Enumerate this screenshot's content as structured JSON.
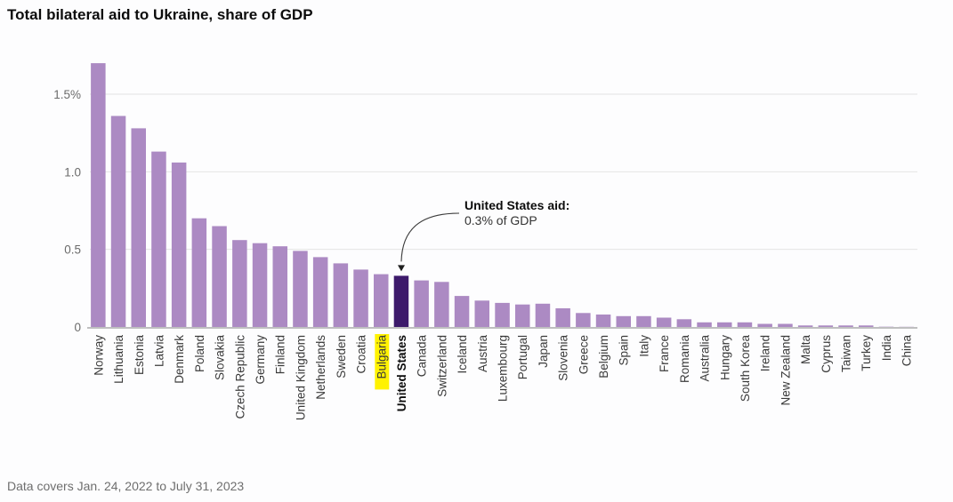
{
  "chart_data": {
    "type": "bar",
    "title": "Total bilateral aid to Ukraine, share of GDP",
    "xlabel": "",
    "ylabel": "",
    "ylim": [
      0,
      1.7
    ],
    "yticks": [
      0,
      0.5,
      1.0,
      1.5
    ],
    "ytick_labels": [
      "0",
      "0.5",
      "1.0",
      "1.5%"
    ],
    "grid": true,
    "categories": [
      "Norway",
      "Lithuania",
      "Estonia",
      "Latvia",
      "Denmark",
      "Poland",
      "Slovakia",
      "Czech Republic",
      "Germany",
      "Finland",
      "United Kingdom",
      "Netherlands",
      "Sweden",
      "Croatia",
      "Bulgaria",
      "United States",
      "Canada",
      "Switzerland",
      "Iceland",
      "Austria",
      "Luxembourg",
      "Portugal",
      "Japan",
      "Slovenia",
      "Greece",
      "Belgium",
      "Spain",
      "Italy",
      "France",
      "Romania",
      "Australia",
      "Hungary",
      "South Korea",
      "Ireland",
      "New Zealand",
      "Malta",
      "Cyprus",
      "Taiwan",
      "Turkey",
      "India",
      "China"
    ],
    "values": [
      1.7,
      1.36,
      1.28,
      1.13,
      1.06,
      0.7,
      0.65,
      0.56,
      0.54,
      0.52,
      0.49,
      0.45,
      0.41,
      0.37,
      0.34,
      0.33,
      0.3,
      0.29,
      0.2,
      0.17,
      0.155,
      0.145,
      0.15,
      0.12,
      0.09,
      0.08,
      0.07,
      0.07,
      0.06,
      0.05,
      0.03,
      0.03,
      0.03,
      0.02,
      0.02,
      0.01,
      0.01,
      0.01,
      0.01,
      0.002,
      0.001
    ],
    "highlight_category": "United States",
    "highlighted_label_category": "Bulgaria",
    "annotation": {
      "heading": "United States aid:",
      "text": "0.3% of GDP",
      "target": "United States"
    },
    "colors": {
      "bar": "#ac8ac3",
      "highlight_bar": "#3d1a6b",
      "label_highlight_bg": "#fff200",
      "grid": "#e4e4e4",
      "baseline": "#9a9a9a"
    },
    "footnote": "Data covers Jan. 24, 2022 to July 31, 2023"
  }
}
